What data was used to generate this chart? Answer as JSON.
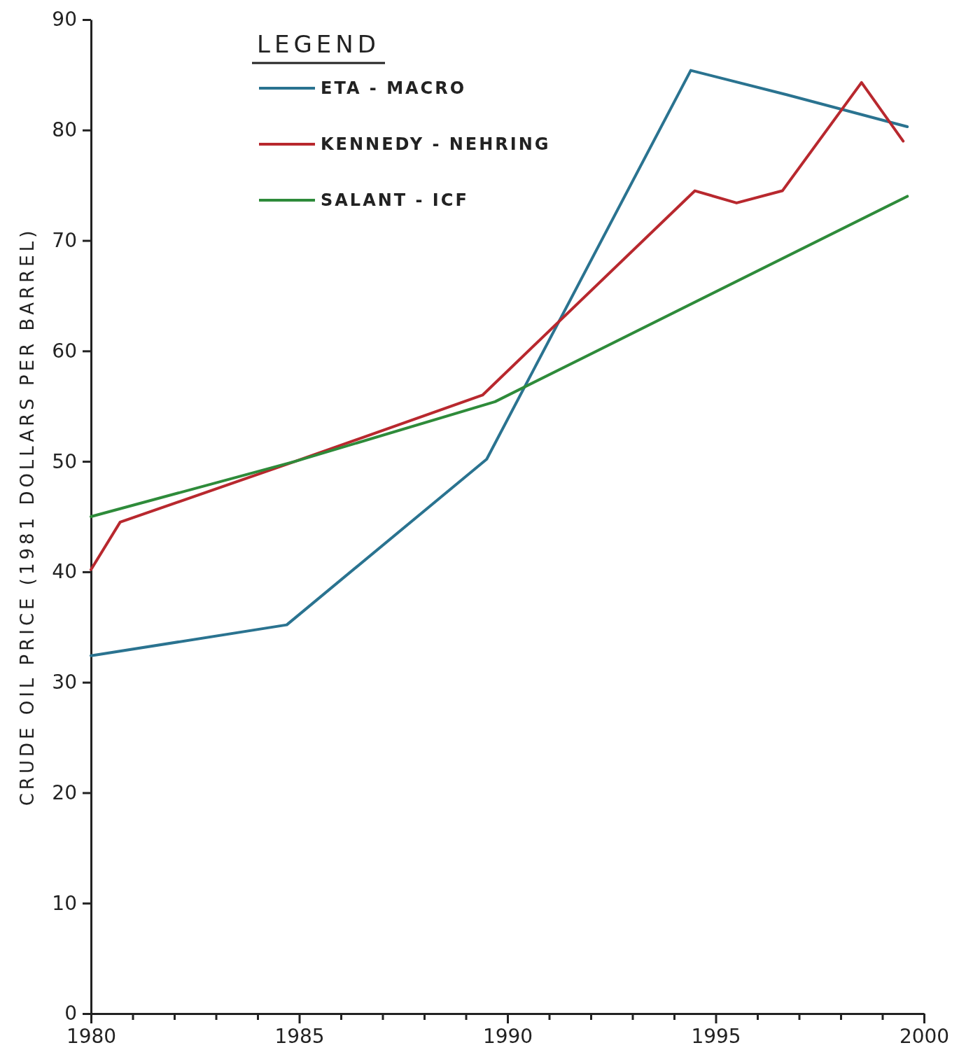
{
  "chart_data": {
    "type": "line",
    "ylabel": "CRUDE OIL PRICE (1981 DOLLARS PER BARREL)",
    "legend_title": "LEGEND",
    "legend": "top left",
    "grid": false,
    "xlim": [
      1980,
      2000
    ],
    "ylim": [
      0,
      90
    ],
    "xticks": [
      1980,
      {
        "value": 1981,
        "label": null
      },
      {
        "value": 1982,
        "label": null
      },
      {
        "value": 1983,
        "label": null
      },
      {
        "value": 1984,
        "label": null
      },
      1985,
      {
        "value": 1986,
        "label": null
      },
      {
        "value": 1987,
        "label": null
      },
      {
        "value": 1988,
        "label": null
      },
      {
        "value": 1989,
        "label": null
      },
      1990,
      {
        "value": 1991,
        "label": null
      },
      {
        "value": 1992,
        "label": null
      },
      {
        "value": 1993,
        "label": null
      },
      {
        "value": 1994,
        "label": null
      },
      1995,
      {
        "value": 1996,
        "label": null
      },
      {
        "value": 1997,
        "label": null
      },
      {
        "value": 1998,
        "label": null
      },
      {
        "value": 1999,
        "label": null
      },
      2000
    ],
    "yticks": [
      0,
      10,
      20,
      30,
      40,
      50,
      60,
      70,
      80,
      90
    ],
    "series": [
      {
        "name": "ETA - MACRO",
        "color": "#2a7390",
        "x": [
          1980,
          1984.7,
          1989.5,
          1994.4,
          1996.7,
          1999.6
        ],
        "values": [
          32.4,
          35.2,
          50.2,
          85.4,
          83.2,
          80.3
        ]
      },
      {
        "name": "KENNEDY - NEHRING",
        "color": "#b8282e",
        "x": [
          1980,
          1980.7,
          1984.9,
          1989.4,
          1994.5,
          1995.5,
          1996.6,
          1998.5,
          1999.5
        ],
        "values": [
          40.2,
          44.5,
          50,
          56,
          74.5,
          73.4,
          74.5,
          84.3,
          79
        ]
      },
      {
        "name": "SALANT - ICF",
        "color": "#2e8b3a",
        "x": [
          1980,
          1984.9,
          1989.7,
          1999.6
        ],
        "values": [
          45,
          50,
          55.4,
          74
        ]
      }
    ]
  }
}
